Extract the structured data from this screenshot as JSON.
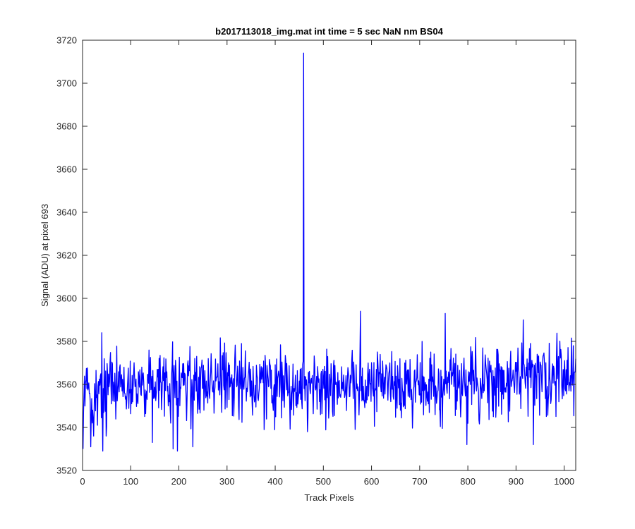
{
  "chart_data": {
    "type": "line",
    "title": "b2017113018_img.mat int time = 5 sec  NaN nm BS04",
    "xlabel": "Track Pixels",
    "ylabel": "Signal (ADU) at pixel 693",
    "xlim": [
      0,
      1024
    ],
    "ylim": [
      3520,
      3720
    ],
    "xticks": [
      0,
      100,
      200,
      300,
      400,
      500,
      600,
      700,
      800,
      900,
      1000
    ],
    "yticks": [
      3520,
      3540,
      3560,
      3580,
      3600,
      3620,
      3640,
      3660,
      3680,
      3700,
      3720
    ],
    "grid": false,
    "box": true,
    "series": [
      {
        "color": "#0000ff",
        "x_start": 1,
        "x_step": 1,
        "baseline_start": 3556,
        "baseline_end": 3564,
        "noise_sd": 8,
        "spike": {
          "x": 459,
          "y": 3714
        },
        "min_points": [
          {
            "x": 1,
            "y": 3530
          },
          {
            "x": 17,
            "y": 3531
          },
          {
            "x": 42,
            "y": 3529
          },
          {
            "x": 145,
            "y": 3533
          },
          {
            "x": 188,
            "y": 3530
          },
          {
            "x": 197,
            "y": 3529
          },
          {
            "x": 229,
            "y": 3531
          },
          {
            "x": 798,
            "y": 3532
          },
          {
            "x": 936,
            "y": 3532
          }
        ],
        "max_points": [
          {
            "x": 40,
            "y": 3584
          },
          {
            "x": 577,
            "y": 3594
          },
          {
            "x": 753,
            "y": 3593
          },
          {
            "x": 915,
            "y": 3590
          },
          {
            "x": 1019,
            "y": 3578
          }
        ]
      }
    ]
  }
}
